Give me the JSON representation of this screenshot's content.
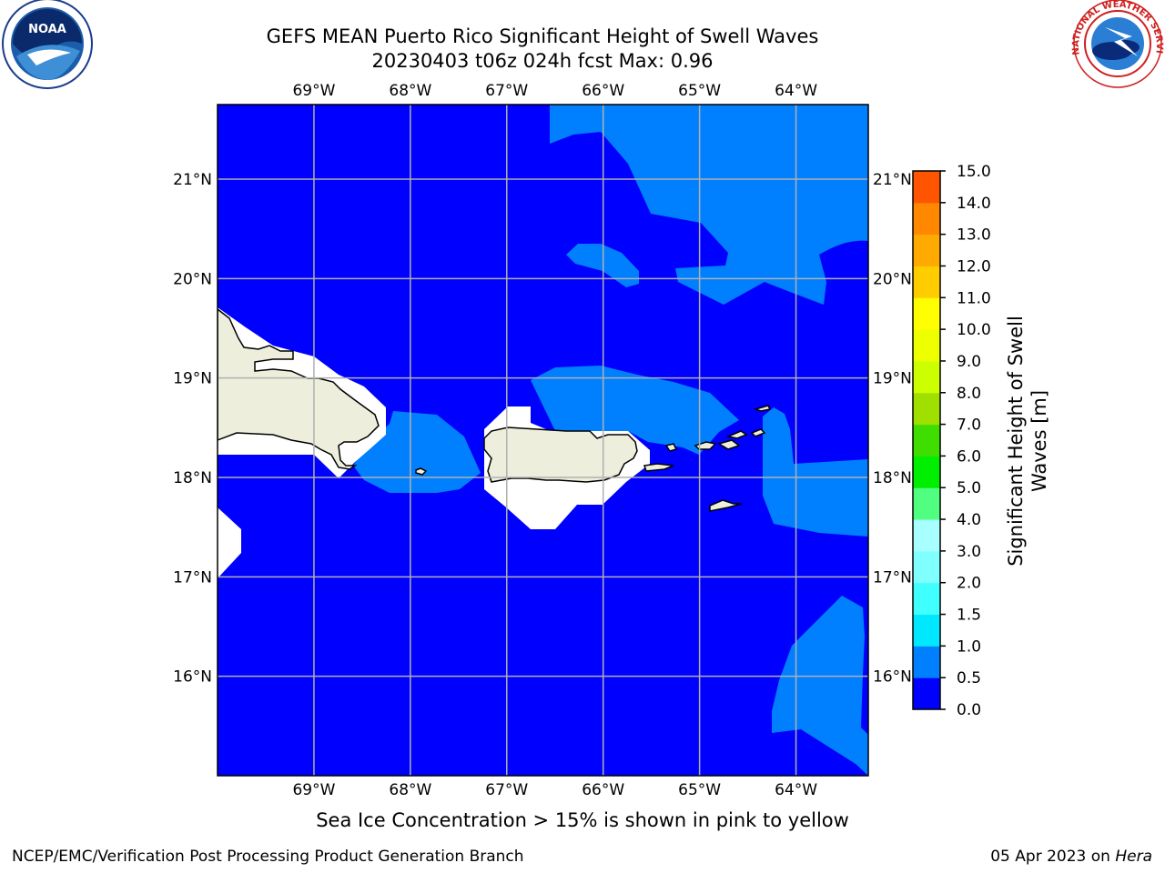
{
  "title_line1": "GEFS MEAN Puerto Rico Significant Height of Swell Waves",
  "title_line2": "20230403 t06z 024h fcst   Max: 0.96",
  "map": {
    "lon_range": [
      -70,
      -63.25
    ],
    "lat_range": [
      15,
      21.75
    ],
    "lon_ticks": [
      -69,
      -68,
      -67,
      -66,
      -65,
      -64
    ],
    "lat_ticks": [
      21,
      20,
      19,
      18,
      17,
      16
    ],
    "lon_labels": [
      "69°W",
      "68°W",
      "67°W",
      "66°W",
      "65°W",
      "64°W"
    ],
    "lat_labels": [
      "21°N",
      "20°N",
      "19°N",
      "18°N",
      "17°N",
      "16°N"
    ],
    "gridlines": true,
    "colors": {
      "band_0_0p5": "#0000ff",
      "band_0p5_1": "#0080ff",
      "land": "#eeeedd",
      "grid": "#b0b0b0"
    }
  },
  "colorbar": {
    "label_line1": "Significant Height of Swell",
    "label_line2": "Waves [m]",
    "ticks": [
      "0.0",
      "0.5",
      "1.0",
      "1.5",
      "2.0",
      "3.0",
      "4.0",
      "5.0",
      "6.0",
      "7.0",
      "8.0",
      "9.0",
      "10.0",
      "11.0",
      "12.0",
      "13.0",
      "14.0",
      "15.0"
    ],
    "colors": [
      "#0000ff",
      "#0080ff",
      "#00e8ff",
      "#40ffff",
      "#80ffff",
      "#a8ffff",
      "#50ff80",
      "#00ee00",
      "#40dd00",
      "#a0e000",
      "#ccff00",
      "#eeff00",
      "#ffff00",
      "#ffcc00",
      "#ffaa00",
      "#ff8800",
      "#ff5500",
      "#ff2200",
      "#ff0000"
    ]
  },
  "note": "Sea Ice Concentration > 15% is shown in pink to yellow",
  "footer": {
    "left": "NCEP/EMC/Verification Post Processing Product Generation Branch",
    "right_prefix": "05 Apr 2023 on ",
    "right_host": "Hera"
  },
  "logos": {
    "left": "NOAA",
    "right": "NATIONAL WEATHER SERVICE"
  }
}
